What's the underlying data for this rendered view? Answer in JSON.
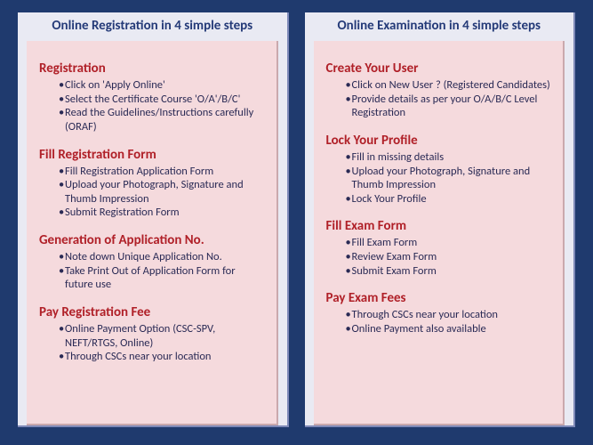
{
  "colors": {
    "page_bg": "#1f3a6e",
    "panel_bg": "#e9eaf3",
    "body_bg": "#f5dadd",
    "header_text": "#243a78",
    "section_title": "#b02028",
    "bullet_text": "#2a2a55"
  },
  "panels": [
    {
      "header": "Online Registration in 4 simple steps",
      "sections": [
        {
          "title": "Registration",
          "bullets": [
            "Click on 'Apply Online'",
            "Select the Certificate Course 'O/A'/B/C'",
            "Read the Guidelines/Instructions carefully (ORAF)"
          ]
        },
        {
          "title": "Fill Registration Form",
          "bullets": [
            "Fill Registration Application Form",
            "Upload your Photograph, Signature and Thumb Impression",
            "Submit Registration Form"
          ]
        },
        {
          "title": "Generation of Application No.",
          "bullets": [
            "Note down Unique Application No.",
            "Take Print Out of Application Form for future use"
          ]
        },
        {
          "title": "Pay Registration Fee",
          "bullets": [
            "Online Payment Option (CSC-SPV, NEFT/RTGS, Online)",
            "Through CSCs near your location"
          ]
        }
      ]
    },
    {
      "header": "Online Examination in 4 simple steps",
      "sections": [
        {
          "title": "Create Your User",
          "bullets": [
            "Click on New User ? (Registered Candidates)",
            "Provide details as per your O/A/B/C Level Registration"
          ]
        },
        {
          "title": "Lock Your  Profile",
          "bullets": [
            "Fill in missing details",
            "Upload your Photograph, Signature and Thumb Impression",
            "Lock Your Profile"
          ]
        },
        {
          "title": "Fill Exam Form",
          "bullets": [
            "Fill Exam Form",
            "Review Exam Form",
            "Submit Exam Form"
          ]
        },
        {
          "title": "Pay Exam Fees",
          "bullets": [
            "Through CSCs near your location",
            "Online Payment also available"
          ]
        }
      ]
    }
  ]
}
